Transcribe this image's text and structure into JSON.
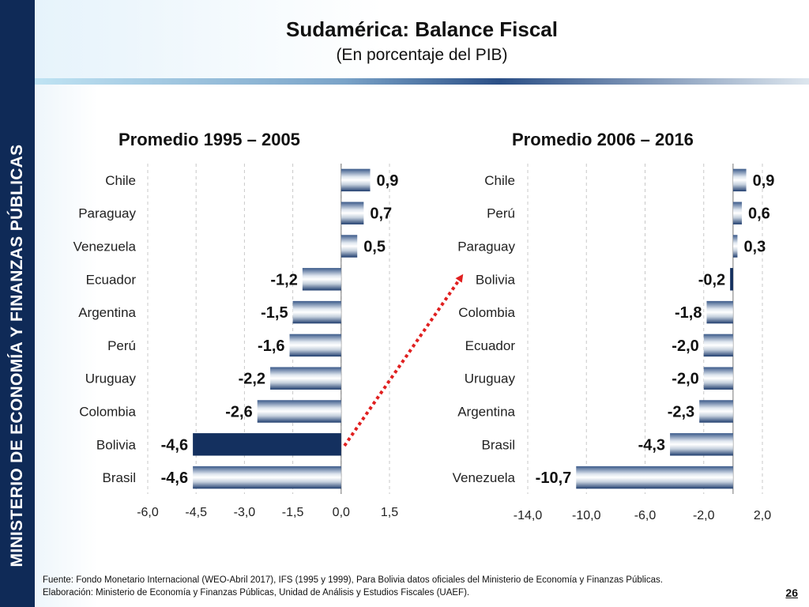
{
  "slide": {
    "title": "Sudamérica: Balance Fiscal",
    "subtitle": "(En porcentaje del PIB)",
    "side_label": "MINISTERIO DE ECONOMÍA Y FINANZAS PÚBLICAS",
    "footer_source": "Fuente: Fondo Monetario Internacional (WEO-Abril 2017), IFS (1995 y 1999), Para Bolivia datos oficiales del Ministerio de Economía y Finanzas Públicas.",
    "footer_elaboration": "Elaboración: Ministerio de Economía y Finanzas Públicas, Unidad de Análisis y Estudios Fiscales (UAEF).",
    "page_number": "26"
  },
  "colors": {
    "navy": "#0f2a57",
    "bolivia_bar": "#14305f",
    "arrow": "#e02020",
    "grid": "#c8c8c8"
  },
  "chart_data": [
    {
      "type": "bar",
      "orientation": "horizontal",
      "title": "Promedio 1995 – 2005",
      "categories": [
        "Chile",
        "Paraguay",
        "Venezuela",
        "Ecuador",
        "Argentina",
        "Perú",
        "Uruguay",
        "Colombia",
        "Bolivia",
        "Brasil"
      ],
      "values": [
        0.9,
        0.7,
        0.5,
        -1.2,
        -1.5,
        -1.6,
        -2.2,
        -2.6,
        -4.6,
        -4.6
      ],
      "labels": [
        "0,9",
        "0,7",
        "0,5",
        "-1,2",
        "-1,5",
        "-1,6",
        "-2,2",
        "-2,6",
        "-4,6",
        "-4,6"
      ],
      "highlight": "Bolivia",
      "xlim": [
        -6.0,
        1.5
      ],
      "ticks": [
        -6.0,
        -4.5,
        -3.0,
        -1.5,
        0.0,
        1.5
      ],
      "tick_labels": [
        "-6,0",
        "-4,5",
        "-3,0",
        "-1,5",
        "0,0",
        "1,5"
      ],
      "grid": true
    },
    {
      "type": "bar",
      "orientation": "horizontal",
      "title": "Promedio 2006 – 2016",
      "categories": [
        "Chile",
        "Perú",
        "Paraguay",
        "Bolivia",
        "Colombia",
        "Ecuador",
        "Uruguay",
        "Argentina",
        "Brasil",
        "Venezuela"
      ],
      "values": [
        0.9,
        0.6,
        0.3,
        -0.2,
        -1.8,
        -2.0,
        -2.0,
        -2.3,
        -4.3,
        -10.7
      ],
      "labels": [
        "0,9",
        "0,6",
        "0,3",
        "-0,2",
        "-1,8",
        "-2,0",
        "-2,0",
        "-2,3",
        "-4,3",
        "-10,7"
      ],
      "highlight": "Bolivia",
      "xlim": [
        -14.0,
        2.0
      ],
      "ticks": [
        -14.0,
        -10.0,
        -6.0,
        -2.0,
        2.0
      ],
      "tick_labels": [
        "-14,0",
        "-10,0",
        "-6,0",
        "-2,0",
        "2,0"
      ],
      "grid": true
    }
  ]
}
